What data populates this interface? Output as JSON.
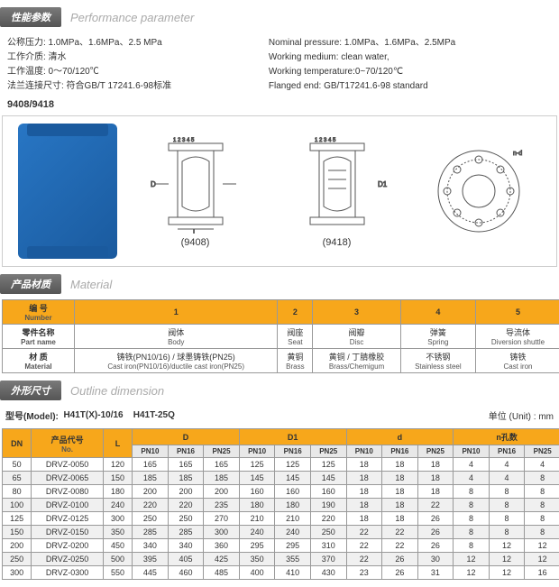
{
  "sections": {
    "perf": {
      "badge": "性能参数",
      "title": "Performance parameter"
    },
    "mat": {
      "badge": "产品材质",
      "title": "Material"
    },
    "dim": {
      "badge": "外形尺寸",
      "title": "Outline dimension"
    }
  },
  "perf": {
    "l1": "公称压力: 1.0MPa、1.6MPa、2.5  MPa",
    "l2": "工作介质: 清水",
    "l3": "工作温度: 0～70/120℃",
    "l4": "法兰连接尺寸: 符合GB/T 17241.6-98标准",
    "r1": "Nominal pressure: 1.0MPa、1.6MPa、2.5MPa",
    "r2": "Working medium: clean water,",
    "r3": "Working temperature:0~70/120℃",
    "r4": "Flanged end: GB/T17241.6-98 standard"
  },
  "model_num": "9408/9418",
  "diag": {
    "a": "(9408)",
    "b": "(9418)"
  },
  "mat_header": {
    "num_cn": "编   号",
    "num_en": "Number",
    "part_cn": "零件名称",
    "part_en": "Part name",
    "m_cn": "材   质",
    "m_en": "Material"
  },
  "mat_cols": [
    "1",
    "2",
    "3",
    "4",
    "5"
  ],
  "mat_parts_cn": [
    "阀体",
    "阀座",
    "阀瓣",
    "弹簧",
    "导流体"
  ],
  "mat_parts_en": [
    "Body",
    "Seat",
    "Disc",
    "Spring",
    "Diversion shuttle"
  ],
  "mat_m_cn": [
    "铸铁(PN10/16) / 球墨铸铁(PN25)",
    "黄铜",
    "黄铜 / 丁腈橡胶",
    "不锈钢",
    "铸铁"
  ],
  "mat_m_en": [
    "Cast iron(PN10/16)/ductile cast iron(PN25)",
    "Brass",
    "Brass/Chemigum",
    "Stainless steel",
    "Cast iron"
  ],
  "model_line": {
    "label": "型号(Model):",
    "m1": "H41T(X)-10/16",
    "m2": "H41T-25Q",
    "unit": "单位 (Unit) : mm"
  },
  "dim_head": {
    "dn": "DN",
    "no_cn": "产品代号",
    "no_en": "No.",
    "l": "L",
    "d": "D",
    "d1": "D1",
    "dd": "d",
    "n": "n孔数"
  },
  "pn": [
    "PN10",
    "PN16",
    "PN25"
  ],
  "rows": [
    [
      "50",
      "DRVZ-0050",
      "120",
      "165",
      "165",
      "165",
      "125",
      "125",
      "125",
      "18",
      "18",
      "18",
      "4",
      "4",
      "4"
    ],
    [
      "65",
      "DRVZ-0065",
      "150",
      "185",
      "185",
      "185",
      "145",
      "145",
      "145",
      "18",
      "18",
      "18",
      "4",
      "4",
      "8"
    ],
    [
      "80",
      "DRVZ-0080",
      "180",
      "200",
      "200",
      "200",
      "160",
      "160",
      "160",
      "18",
      "18",
      "18",
      "8",
      "8",
      "8"
    ],
    [
      "100",
      "DRVZ-0100",
      "240",
      "220",
      "220",
      "235",
      "180",
      "180",
      "190",
      "18",
      "18",
      "22",
      "8",
      "8",
      "8"
    ],
    [
      "125",
      "DRVZ-0125",
      "300",
      "250",
      "250",
      "270",
      "210",
      "210",
      "220",
      "18",
      "18",
      "26",
      "8",
      "8",
      "8"
    ],
    [
      "150",
      "DRVZ-0150",
      "350",
      "285",
      "285",
      "300",
      "240",
      "240",
      "250",
      "22",
      "22",
      "26",
      "8",
      "8",
      "8"
    ],
    [
      "200",
      "DRVZ-0200",
      "450",
      "340",
      "340",
      "360",
      "295",
      "295",
      "310",
      "22",
      "22",
      "26",
      "8",
      "12",
      "12"
    ],
    [
      "250",
      "DRVZ-0250",
      "500",
      "395",
      "405",
      "425",
      "350",
      "355",
      "370",
      "22",
      "26",
      "30",
      "12",
      "12",
      "12"
    ],
    [
      "300",
      "DRVZ-0300",
      "550",
      "445",
      "460",
      "485",
      "400",
      "410",
      "430",
      "23",
      "26",
      "31",
      "12",
      "12",
      "16"
    ]
  ]
}
